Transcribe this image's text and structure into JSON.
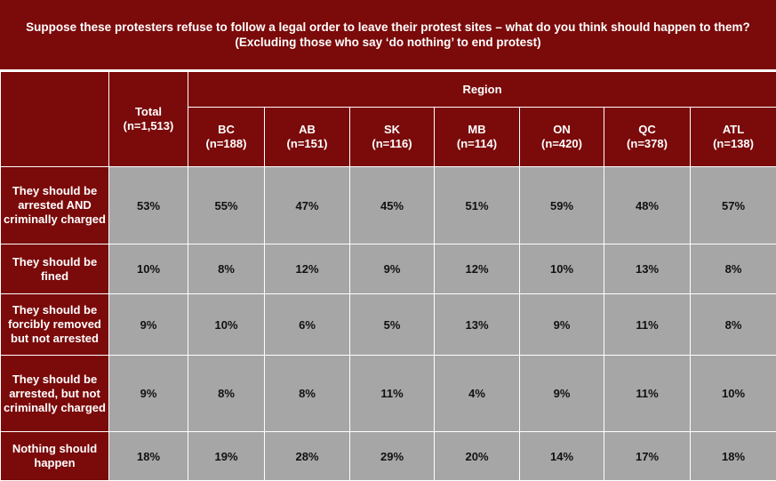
{
  "title": "Suppose these protesters refuse to follow a legal order to leave their protest sites – what do you think should happen to them? (Excluding those who say ‘do nothing’ to end protest)",
  "header": {
    "region": "Region",
    "total": {
      "name": "Total",
      "n": "(n=1,513)"
    },
    "columns": [
      {
        "name": "BC",
        "n": "(n=188)"
      },
      {
        "name": "AB",
        "n": "(n=151)"
      },
      {
        "name": "SK",
        "n": "(n=116)"
      },
      {
        "name": "MB",
        "n": "(n=114)"
      },
      {
        "name": "ON",
        "n": "(n=420)"
      },
      {
        "name": "QC",
        "n": "(n=378)"
      },
      {
        "name": "ATL",
        "n": "(n=138)"
      }
    ]
  },
  "rows": [
    {
      "label": "They should be arrested AND criminally charged",
      "values": [
        "53%",
        "55%",
        "47%",
        "45%",
        "51%",
        "59%",
        "48%",
        "57%"
      ]
    },
    {
      "label": "They should be fined",
      "values": [
        "10%",
        "8%",
        "12%",
        "9%",
        "12%",
        "10%",
        "13%",
        "8%"
      ]
    },
    {
      "label": "They should be forcibly removed but not arrested",
      "values": [
        "9%",
        "10%",
        "6%",
        "5%",
        "13%",
        "9%",
        "11%",
        "8%"
      ]
    },
    {
      "label": "They should be arrested, but not criminally charged",
      "values": [
        "9%",
        "8%",
        "8%",
        "11%",
        "4%",
        "9%",
        "11%",
        "10%"
      ]
    },
    {
      "label": "Nothing should happen",
      "values": [
        "18%",
        "19%",
        "28%",
        "29%",
        "20%",
        "14%",
        "17%",
        "18%"
      ]
    }
  ],
  "colors": {
    "header_bg": "#7b0a0a",
    "cell_bg": "#a6a6a6",
    "header_text": "#ffffff"
  }
}
